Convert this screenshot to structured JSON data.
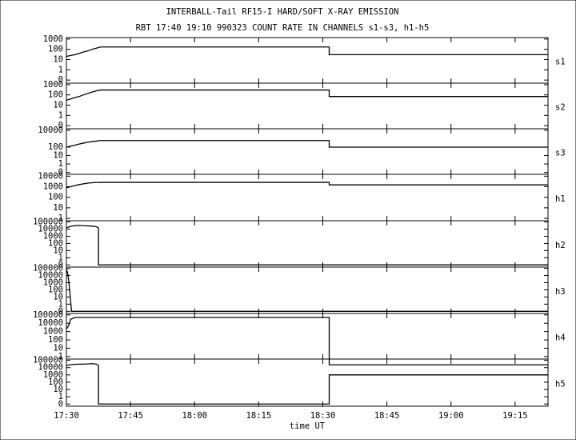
{
  "chart_data": {
    "type": "line",
    "title": "INTERBALL-Tail RF15-I HARD/SOFT X-RAY EMISSION",
    "subtitle": "RBT 17:40 19:10 990323  COUNT RATE IN CHANNELS s1-s3, h1-h5",
    "xlabel": "time UT",
    "log_scale": true,
    "color": "#000000",
    "xlim": [
      1050,
      1162.7
    ],
    "xticks": [
      {
        "value": 1050,
        "label": "17:30"
      },
      {
        "value": 1065,
        "label": "17:45"
      },
      {
        "value": 1080,
        "label": "18:00"
      },
      {
        "value": 1095,
        "label": "18:15"
      },
      {
        "value": 1110,
        "label": "18:30"
      },
      {
        "value": 1125,
        "label": "18:45"
      },
      {
        "value": 1140,
        "label": "19:00"
      },
      {
        "value": 1155,
        "label": "19:15"
      }
    ],
    "panels": [
      {
        "name": "s1",
        "ylim": [
          0.05,
          1400
        ],
        "yticks": [
          1000,
          100,
          10,
          1,
          0
        ],
        "x": [
          1050,
          1051,
          1052,
          1053,
          1054,
          1055,
          1056,
          1057,
          1058,
          1111.5,
          1111.5,
          1162.7
        ],
        "values": [
          20,
          25,
          30,
          40,
          55,
          70,
          100,
          130,
          170,
          170,
          30,
          30
        ]
      },
      {
        "name": "s2",
        "ylim": [
          0.05,
          1400
        ],
        "yticks": [
          1000,
          100,
          10,
          1,
          0
        ],
        "x": [
          1050,
          1051,
          1052,
          1053,
          1054,
          1055,
          1056,
          1057,
          1058,
          1111.5,
          1111.5,
          1162.7
        ],
        "values": [
          30,
          40,
          55,
          70,
          100,
          140,
          190,
          250,
          300,
          300,
          70,
          70
        ]
      },
      {
        "name": "s3",
        "ylim": [
          0.06,
          15000
        ],
        "yticks": [
          10000,
          100,
          10,
          1,
          0
        ],
        "x": [
          1050,
          1051,
          1052,
          1053,
          1054,
          1055,
          1056,
          1057,
          1058,
          1111.5,
          1111.5,
          1162.7
        ],
        "values": [
          100,
          130,
          170,
          230,
          300,
          380,
          450,
          520,
          600,
          600,
          100,
          100
        ]
      },
      {
        "name": "h1",
        "ylim": [
          0.6,
          15000
        ],
        "yticks": [
          10000,
          1000,
          100,
          10,
          1
        ],
        "x": [
          1050,
          1051,
          1052,
          1053,
          1054,
          1055,
          1056,
          1057,
          1058,
          1111.5,
          1111.5,
          1162.7
        ],
        "values": [
          800,
          1000,
          1300,
          1600,
          1900,
          2200,
          2400,
          2500,
          2600,
          2600,
          1500,
          1500
        ]
      },
      {
        "name": "h2",
        "ylim": [
          0.05,
          150000
        ],
        "yticks": [
          100000,
          10000,
          1000,
          100,
          10,
          1,
          0
        ],
        "x": [
          1050,
          1051,
          1052,
          1053,
          1054,
          1055,
          1056,
          1057,
          1057.5,
          1057.5,
          1162.7
        ],
        "values": [
          15000,
          25000,
          30000,
          32000,
          30000,
          28000,
          26000,
          22000,
          15000,
          0,
          0
        ]
      },
      {
        "name": "h3",
        "ylim": [
          0.05,
          150000
        ],
        "yticks": [
          100000,
          10000,
          1000,
          100,
          10,
          1,
          0
        ],
        "x": [
          1050,
          1050.3,
          1050.6,
          1050.9,
          1051.2,
          1162.7
        ],
        "values": [
          100000,
          20000,
          1000,
          10,
          0,
          0
        ]
      },
      {
        "name": "h4",
        "ylim": [
          0.5,
          150000
        ],
        "yticks": [
          100000,
          10000,
          1000,
          100,
          10,
          1
        ],
        "x": [
          1050,
          1050.5,
          1051,
          1052,
          1111.5,
          1111.5,
          1162.7
        ],
        "values": [
          2000,
          5000,
          30000,
          50000,
          50000,
          0,
          0
        ]
      },
      {
        "name": "h5",
        "ylim": [
          0.05,
          150000
        ],
        "yticks": [
          100000,
          10000,
          1000,
          100,
          10,
          1,
          0
        ],
        "x": [
          1050,
          1051,
          1052,
          1053,
          1054,
          1055,
          1056,
          1057,
          1057.5,
          1057.5,
          1111.5,
          1111.5,
          1162.7
        ],
        "values": [
          20000,
          25000,
          28000,
          30000,
          30000,
          32000,
          35000,
          30000,
          20000,
          0,
          0,
          1000,
          1000
        ]
      }
    ]
  }
}
